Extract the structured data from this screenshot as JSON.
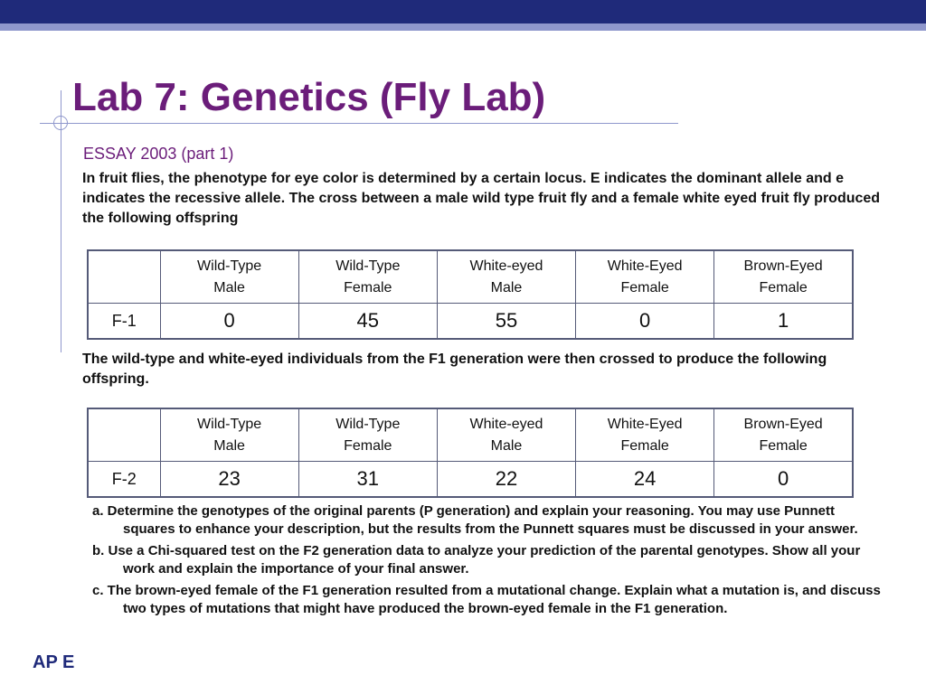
{
  "title": "Lab 7: Genetics (Fly Lab)",
  "subtitle": "ESSAY 2003 (part 1)",
  "intro": "In fruit flies, the phenotype for eye color is determined by a certain locus. E indicates the dominant allele and e indicates the recessive allele. The cross between a male wild type fruit fly and a female white eyed fruit fly produced the following offspring",
  "tables": [
    {
      "row_label": "F-1",
      "headers": [
        [
          "Wild-Type",
          "Male"
        ],
        [
          "Wild-Type",
          "Female"
        ],
        [
          "White-eyed",
          "Male"
        ],
        [
          "White-Eyed",
          "Female"
        ],
        [
          "Brown-Eyed",
          "Female"
        ]
      ],
      "values": [
        "0",
        "45",
        "55",
        "0",
        "1"
      ]
    },
    {
      "row_label": "F-2",
      "headers": [
        [
          "Wild-Type",
          "Male"
        ],
        [
          "Wild-Type",
          "Female"
        ],
        [
          "White-eyed",
          "Male"
        ],
        [
          "White-Eyed",
          "Female"
        ],
        [
          "Brown-Eyed",
          "Female"
        ]
      ],
      "values": [
        "23",
        "31",
        "22",
        "24",
        "0"
      ]
    }
  ],
  "middle_text": "The wild-type and white-eyed individuals from the F1 generation were then crossed to produce the following offspring.",
  "questions": [
    "a.  Determine the genotypes of the original parents (P generation) and explain your reasoning. You may use Punnett squares to enhance your description, but the results from the Punnett squares must be discussed in your answer.",
    "b.  Use a Chi-squared test on the F2 generation data to analyze your prediction of the parental genotypes. Show all your work and explain the importance of your final answer.",
    "c.  The brown-eyed female of the F1 generation resulted from a mutational change. Explain what a mutation is, and discuss two types of mutations that might have produced the brown-eyed female in the F1 generation."
  ],
  "footer": "AP E"
}
